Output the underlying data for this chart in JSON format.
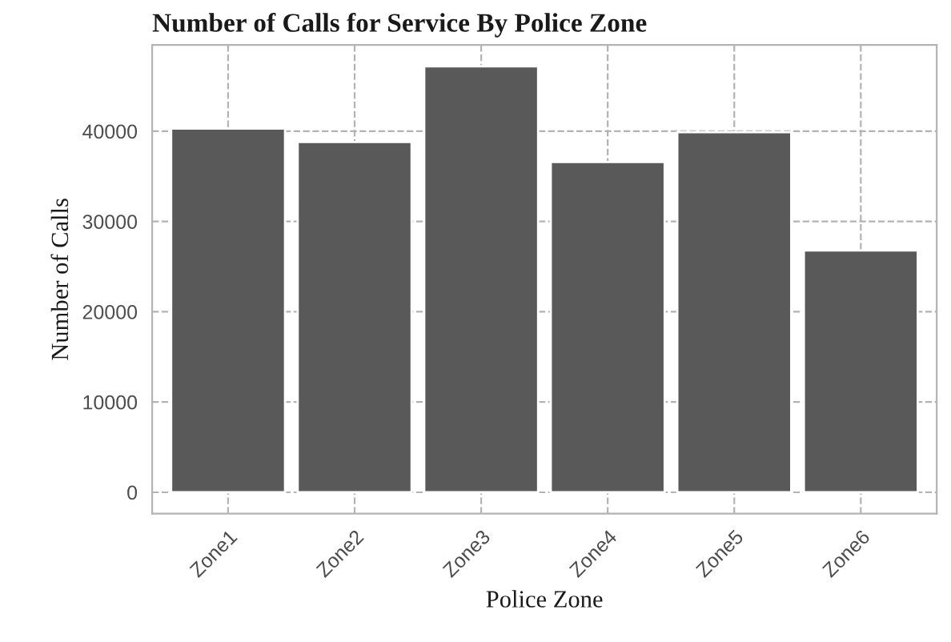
{
  "chart_data": {
    "type": "bar",
    "title": "Number of Calls for Service By Police Zone",
    "xlabel": "Police Zone",
    "ylabel": "Number of Calls",
    "categories": [
      "Zone1",
      "Zone2",
      "Zone3",
      "Zone4",
      "Zone5",
      "Zone6"
    ],
    "values": [
      40300,
      38800,
      47200,
      36600,
      39900,
      26800
    ],
    "color": "#595959",
    "ylim": [
      -2360,
      49560
    ],
    "yticks": [
      0,
      10000,
      20000,
      30000,
      40000
    ],
    "grid": true
  }
}
